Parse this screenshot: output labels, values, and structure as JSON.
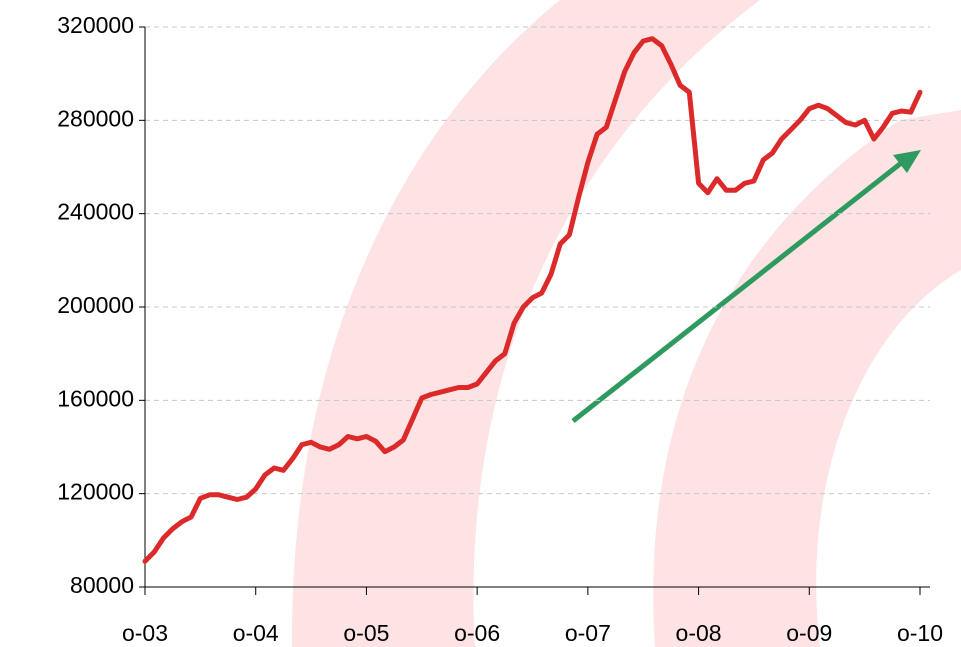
{
  "chart_data": {
    "type": "line",
    "categories": [
      "o-03",
      null,
      null,
      null,
      null,
      null,
      null,
      null,
      null,
      null,
      null,
      null,
      "o-04",
      null,
      null,
      null,
      null,
      null,
      null,
      null,
      null,
      null,
      null,
      null,
      "o-05",
      null,
      null,
      null,
      null,
      null,
      null,
      null,
      null,
      null,
      null,
      null,
      "o-06",
      null,
      null,
      null,
      null,
      null,
      null,
      null,
      null,
      null,
      null,
      null,
      "o-07",
      null,
      null,
      null,
      null,
      null,
      null,
      null,
      null,
      null,
      null,
      null,
      "o-08",
      null,
      null,
      null,
      null,
      null,
      null,
      null,
      null,
      null,
      null,
      null,
      "o-09",
      null,
      null,
      null,
      null,
      null,
      null,
      null,
      null,
      null,
      null,
      null,
      "o-10"
    ],
    "series": [
      {
        "color": "#dc2a2a",
        "values": [
          91000,
          95000,
          101000,
          105000,
          108000,
          110000,
          118000,
          119500,
          119500,
          118500,
          117500,
          118500,
          122000,
          128000,
          131000,
          130000,
          135000,
          141000,
          142000,
          140000,
          139000,
          141000,
          144500,
          143500,
          144500,
          142500,
          138000,
          140000,
          143000,
          152000,
          161000,
          162500,
          163500,
          164500,
          165500,
          165500,
          167000,
          172000,
          177000,
          180000,
          193000,
          200000,
          204000,
          206000,
          214000,
          227000,
          231000,
          247000,
          262000,
          274000,
          277000,
          289000,
          301000,
          309000,
          314000,
          315000,
          312000,
          304000,
          295000,
          292000,
          253000,
          249000,
          255000,
          250000,
          250000,
          253000,
          254000,
          263000,
          266000,
          272000,
          276000,
          280000,
          285000,
          286500,
          285000,
          282000,
          279000,
          278000,
          280000,
          272000,
          277000,
          283000,
          284000,
          283500,
          292000
        ]
      }
    ],
    "ylim": [
      80000,
      320000
    ],
    "yticks": [
      80000,
      120000,
      160000,
      200000,
      240000,
      280000,
      320000
    ],
    "grid": true
  }
}
